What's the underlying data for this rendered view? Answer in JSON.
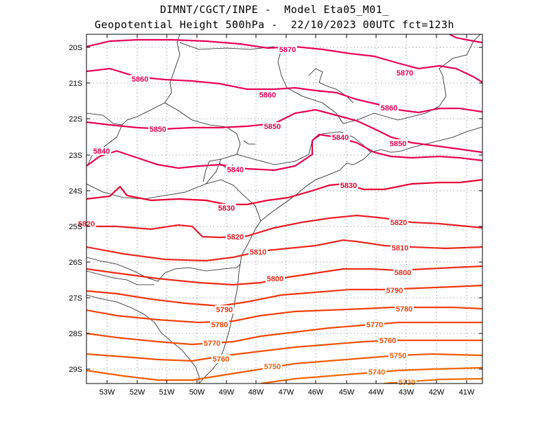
{
  "title": {
    "line1": "DIMNT/CGCT/INPE -  Model Eta05_M01_",
    "line2": "Geopotential Height 500hPa -  22/10/2023 00UTC fct=123h"
  },
  "axes": {
    "x_ticks": [
      "53W",
      "52W",
      "51W",
      "50W",
      "49W",
      "48W",
      "47W",
      "46W",
      "45W",
      "44W",
      "43W",
      "42W",
      "41W"
    ],
    "y_ticks": [
      "20S",
      "21S",
      "22S",
      "23S",
      "24S",
      "25S",
      "26S",
      "27S",
      "28S",
      "29S"
    ]
  },
  "contour_labels": [
    {
      "text": "5870",
      "color": "#e8005a"
    },
    {
      "text": "5870",
      "color": "#e8005a"
    },
    {
      "text": "5860",
      "color": "#e8005a"
    },
    {
      "text": "5860",
      "color": "#e8005a"
    },
    {
      "text": "5860",
      "color": "#e8005a"
    },
    {
      "text": "5850",
      "color": "#e8004e"
    },
    {
      "text": "5850",
      "color": "#e8004e"
    },
    {
      "text": "5850",
      "color": "#e8004e"
    },
    {
      "text": "5840",
      "color": "#e8004e"
    },
    {
      "text": "5840",
      "color": "#e8004e"
    },
    {
      "text": "5840",
      "color": "#e8004e"
    },
    {
      "text": "5830",
      "color": "#e80032"
    },
    {
      "text": "5830",
      "color": "#e80032"
    },
    {
      "text": "5820",
      "color": "#e81e28"
    },
    {
      "text": "5820",
      "color": "#e81e28"
    },
    {
      "text": "5820",
      "color": "#e81e28"
    },
    {
      "text": "5810",
      "color": "#e82820"
    },
    {
      "text": "5810",
      "color": "#e82820"
    },
    {
      "text": "5800",
      "color": "#ee2a16"
    },
    {
      "text": "5800",
      "color": "#ee2a16"
    },
    {
      "text": "5790",
      "color": "#f0360e"
    },
    {
      "text": "5790",
      "color": "#f0360e"
    },
    {
      "text": "5780",
      "color": "#f0400a"
    },
    {
      "text": "5780",
      "color": "#f0400a"
    },
    {
      "text": "5770",
      "color": "#f04a08"
    },
    {
      "text": "5770",
      "color": "#f04a08"
    },
    {
      "text": "5760",
      "color": "#f05008"
    },
    {
      "text": "5760",
      "color": "#f05008"
    },
    {
      "text": "5750",
      "color": "#f05a06"
    },
    {
      "text": "5750",
      "color": "#f05a06"
    },
    {
      "text": "5740",
      "color": "#f06404"
    },
    {
      "text": "5730",
      "color": "#f06e02"
    }
  ]
}
